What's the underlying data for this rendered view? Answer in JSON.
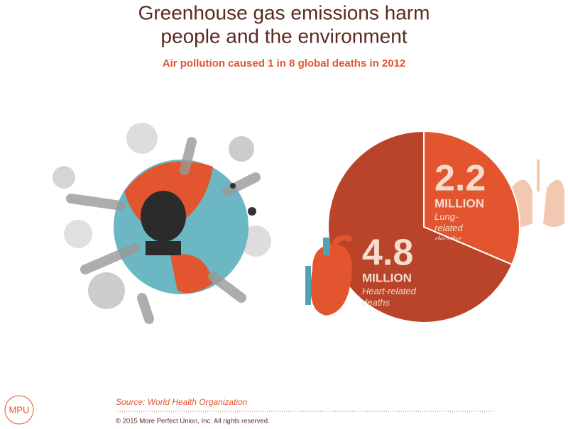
{
  "chart_data": {
    "type": "pie",
    "title": [
      "Greenhouse gas emissions harm",
      "people and the environment"
    ],
    "subtitle": "Air pollution caused 1 in 8 global deaths in 2012",
    "unit": "MILLION",
    "categories": [
      "Lung-related deaths",
      "Heart-related deaths"
    ],
    "values": [
      2.2,
      4.8
    ],
    "colors": [
      "#e2552f",
      "#b9442a"
    ]
  },
  "footer": {
    "source": "Source: World Health Organization",
    "copyright": "© 2015 More Perfect Union, Inc.  All rights reserved.",
    "logo": "MPU"
  }
}
